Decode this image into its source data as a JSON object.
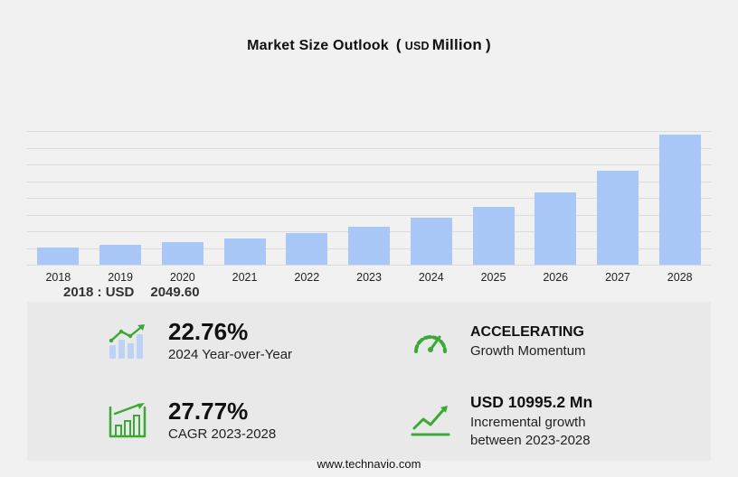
{
  "title": {
    "main": "Market Size Outlook",
    "open_paren": "(",
    "unit_currency": "USD",
    "unit_name": "Million",
    "close_paren": ")"
  },
  "chart_data": {
    "type": "bar",
    "title": "Market Size Outlook (USD Million)",
    "categories": [
      "2018",
      "2019",
      "2020",
      "2021",
      "2022",
      "2023",
      "2024",
      "2025",
      "2026",
      "2027",
      "2028"
    ],
    "values": [
      2049.6,
      2360,
      2725,
      3185,
      3760,
      4571,
      5611,
      6935,
      8690,
      11280,
      15566
    ],
    "xlabel": "",
    "ylabel": "",
    "ylim": [
      0,
      16000
    ],
    "grid": true,
    "gridline_count": 9,
    "legend": false,
    "bar_color": "#a9c7f7",
    "annotation": "2018 : USD 2049.60"
  },
  "chart_caption": {
    "label": "2018 : USD",
    "value": "2049.60"
  },
  "stats": {
    "yoy": {
      "value": "22.76%",
      "label": "2024 Year-over-Year",
      "icon": "bar-chart-trend-icon"
    },
    "momentum": {
      "title": "ACCELERATING",
      "label": "Growth Momentum",
      "icon": "speedometer-icon"
    },
    "cagr": {
      "value": "27.77%",
      "label": "CAGR 2023-2028",
      "icon": "growth-bars-icon"
    },
    "incremental": {
      "title": "USD 10995.2 Mn",
      "line1": "Incremental growth",
      "line2": "between 2023-2028",
      "icon": "trend-arrow-icon"
    }
  },
  "footer": {
    "url": "www.technavio.com"
  },
  "colors": {
    "accent_green": "#3aaa35",
    "bar_blue": "#a9c7f7",
    "panel_bg": "#e9e9ea",
    "page_bg": "#f1f1f2"
  }
}
